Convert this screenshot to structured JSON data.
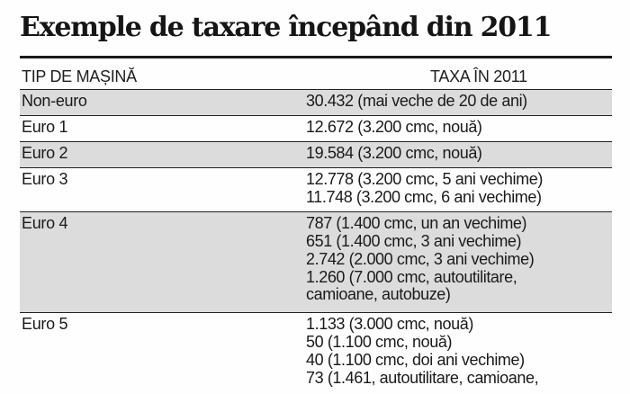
{
  "title": "Exemple de taxare începând din 2011",
  "header": {
    "type_label": "TIP DE MAȘINĂ",
    "tax_label": "TAXA ÎN 2011"
  },
  "rows": [
    {
      "type": "Non-euro",
      "tax": [
        "30.432 (mai veche de 20 de ani)"
      ]
    },
    {
      "type": "Euro 1",
      "tax": [
        "12.672 (3.200 cmc, nouă)"
      ]
    },
    {
      "type": "Euro 2",
      "tax": [
        "19.584 (3.200 cmc, nouă)"
      ]
    },
    {
      "type": "Euro 3",
      "tax": [
        "12.778 (3.200 cmc, 5 ani vechime)",
        "11.748 (3.200 cmc, 6 ani vechime)"
      ]
    },
    {
      "type": "Euro 4",
      "tax": [
        "787 (1.400 cmc, un an vechime)",
        "651 (1.400 cmc, 3 ani vechime)",
        "2.742 (2.000 cmc, 3 ani vechime)",
        "1.260 (7.000 cmc, autoutilitare,",
        "camioane, autobuze)"
      ]
    },
    {
      "type": "Euro 5",
      "tax": [
        "1.133 (3.000 cmc, nouă)",
        "50 (1.100 cmc, nouă)",
        "40 (1.100 cmc, doi ani vechime)",
        "73 (1.461, autoutilitare, camioane,"
      ]
    }
  ]
}
